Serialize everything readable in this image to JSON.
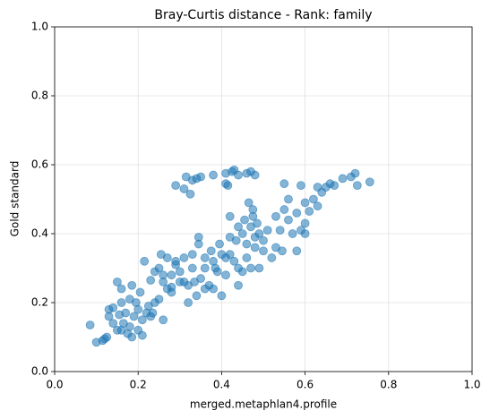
{
  "chart_data": {
    "type": "scatter",
    "title": "Bray-Curtis distance - Rank: family",
    "xlabel": "merged.metaphlan4.profile",
    "ylabel": "Gold standard",
    "color": "#1f77b4",
    "grid": true,
    "xlim": [
      0,
      1
    ],
    "ylim": [
      0,
      1
    ],
    "xticks": [
      {
        "value": 0,
        "label": "0.0"
      },
      {
        "value": 0.2,
        "label": "0.2"
      },
      {
        "value": 0.4,
        "label": "0.4"
      },
      {
        "value": 0.6,
        "label": "0.6"
      },
      {
        "value": 0.8,
        "label": "0.8"
      },
      {
        "value": 1,
        "label": "1.0"
      }
    ],
    "yticks": [
      {
        "value": 0,
        "label": "0.0"
      },
      {
        "value": 0.2,
        "label": "0.2"
      },
      {
        "value": 0.4,
        "label": "0.4"
      },
      {
        "value": 0.6,
        "label": "0.6"
      },
      {
        "value": 0.8,
        "label": "0.8"
      },
      {
        "value": 1,
        "label": "1.0"
      }
    ],
    "x": [
      0.29,
      0.31,
      0.315,
      0.325,
      0.33,
      0.34,
      0.35,
      0.38,
      0.41,
      0.41,
      0.415,
      0.425,
      0.43,
      0.44,
      0.47,
      0.48,
      0.46,
      0.55,
      0.59,
      0.63,
      0.64,
      0.65,
      0.66,
      0.67,
      0.69,
      0.71,
      0.72,
      0.755,
      0.725,
      0.6,
      0.62,
      0.63,
      0.61,
      0.6,
      0.58,
      0.56,
      0.59,
      0.6,
      0.57,
      0.58,
      0.085,
      0.1,
      0.115,
      0.12,
      0.125,
      0.13,
      0.13,
      0.14,
      0.14,
      0.15,
      0.155,
      0.16,
      0.16,
      0.165,
      0.17,
      0.175,
      0.18,
      0.185,
      0.18,
      0.19,
      0.195,
      0.2,
      0.2,
      0.205,
      0.21,
      0.21,
      0.22,
      0.225,
      0.23,
      0.235,
      0.24,
      0.25,
      0.26,
      0.15,
      0.16,
      0.185,
      0.215,
      0.23,
      0.24,
      0.25,
      0.255,
      0.26,
      0.27,
      0.27,
      0.28,
      0.28,
      0.29,
      0.29,
      0.3,
      0.3,
      0.31,
      0.31,
      0.32,
      0.32,
      0.33,
      0.33,
      0.335,
      0.34,
      0.345,
      0.345,
      0.35,
      0.36,
      0.36,
      0.37,
      0.375,
      0.38,
      0.385,
      0.39,
      0.395,
      0.4,
      0.41,
      0.41,
      0.42,
      0.42,
      0.43,
      0.435,
      0.44,
      0.44,
      0.45,
      0.45,
      0.455,
      0.46,
      0.46,
      0.47,
      0.47,
      0.475,
      0.48,
      0.48,
      0.485,
      0.49,
      0.49,
      0.5,
      0.5,
      0.51,
      0.52,
      0.53,
      0.53,
      0.54,
      0.545,
      0.55,
      0.56,
      0.42,
      0.44,
      0.465,
      0.475,
      0.4,
      0.38,
      0.36,
      0.26,
      0.28
    ],
    "values": [
      0.54,
      0.53,
      0.565,
      0.515,
      0.555,
      0.56,
      0.565,
      0.57,
      0.575,
      0.545,
      0.54,
      0.58,
      0.585,
      0.57,
      0.58,
      0.57,
      0.575,
      0.545,
      0.54,
      0.535,
      0.52,
      0.535,
      0.545,
      0.54,
      0.56,
      0.565,
      0.575,
      0.55,
      0.54,
      0.49,
      0.5,
      0.48,
      0.465,
      0.43,
      0.46,
      0.44,
      0.41,
      0.4,
      0.4,
      0.35,
      0.135,
      0.085,
      0.09,
      0.095,
      0.1,
      0.16,
      0.18,
      0.185,
      0.14,
      0.12,
      0.165,
      0.2,
      0.12,
      0.14,
      0.17,
      0.11,
      0.13,
      0.1,
      0.21,
      0.16,
      0.2,
      0.18,
      0.12,
      0.23,
      0.15,
      0.105,
      0.17,
      0.19,
      0.16,
      0.17,
      0.2,
      0.21,
      0.15,
      0.26,
      0.24,
      0.25,
      0.32,
      0.265,
      0.29,
      0.3,
      0.34,
      0.28,
      0.24,
      0.33,
      0.245,
      0.28,
      0.31,
      0.32,
      0.26,
      0.29,
      0.26,
      0.33,
      0.2,
      0.25,
      0.34,
      0.3,
      0.26,
      0.22,
      0.37,
      0.39,
      0.27,
      0.33,
      0.24,
      0.25,
      0.35,
      0.24,
      0.3,
      0.29,
      0.37,
      0.22,
      0.28,
      0.33,
      0.34,
      0.39,
      0.32,
      0.38,
      0.25,
      0.3,
      0.29,
      0.4,
      0.44,
      0.33,
      0.37,
      0.3,
      0.42,
      0.47,
      0.39,
      0.36,
      0.43,
      0.3,
      0.4,
      0.38,
      0.35,
      0.41,
      0.33,
      0.36,
      0.45,
      0.41,
      0.35,
      0.47,
      0.5,
      0.45,
      0.42,
      0.49,
      0.45,
      0.34,
      0.32,
      0.3,
      0.26,
      0.23
    ]
  }
}
